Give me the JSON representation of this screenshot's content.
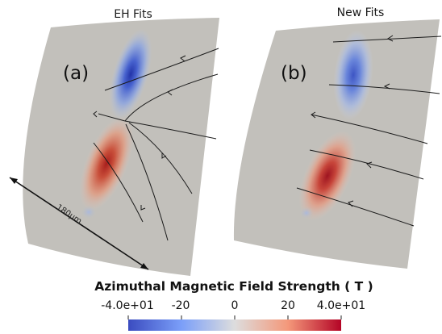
{
  "panels": [
    {
      "title": "EH Fits",
      "label": "(a)"
    },
    {
      "title": "New Fits",
      "label": "(b)"
    }
  ],
  "scale_bar": {
    "label": "180μm"
  },
  "colorbar": {
    "title": "Azimuthal Magnetic Field Strength ( T )",
    "ticks": [
      "-4.0e+01",
      "-20",
      "0",
      "20",
      "4.0e+01"
    ],
    "colors": {
      "min": "#3b4cc0",
      "mid": "#dddddd",
      "max": "#b40426"
    }
  },
  "colors": {
    "background_field": "#c2c0bb",
    "line": "#1b1b1b"
  }
}
